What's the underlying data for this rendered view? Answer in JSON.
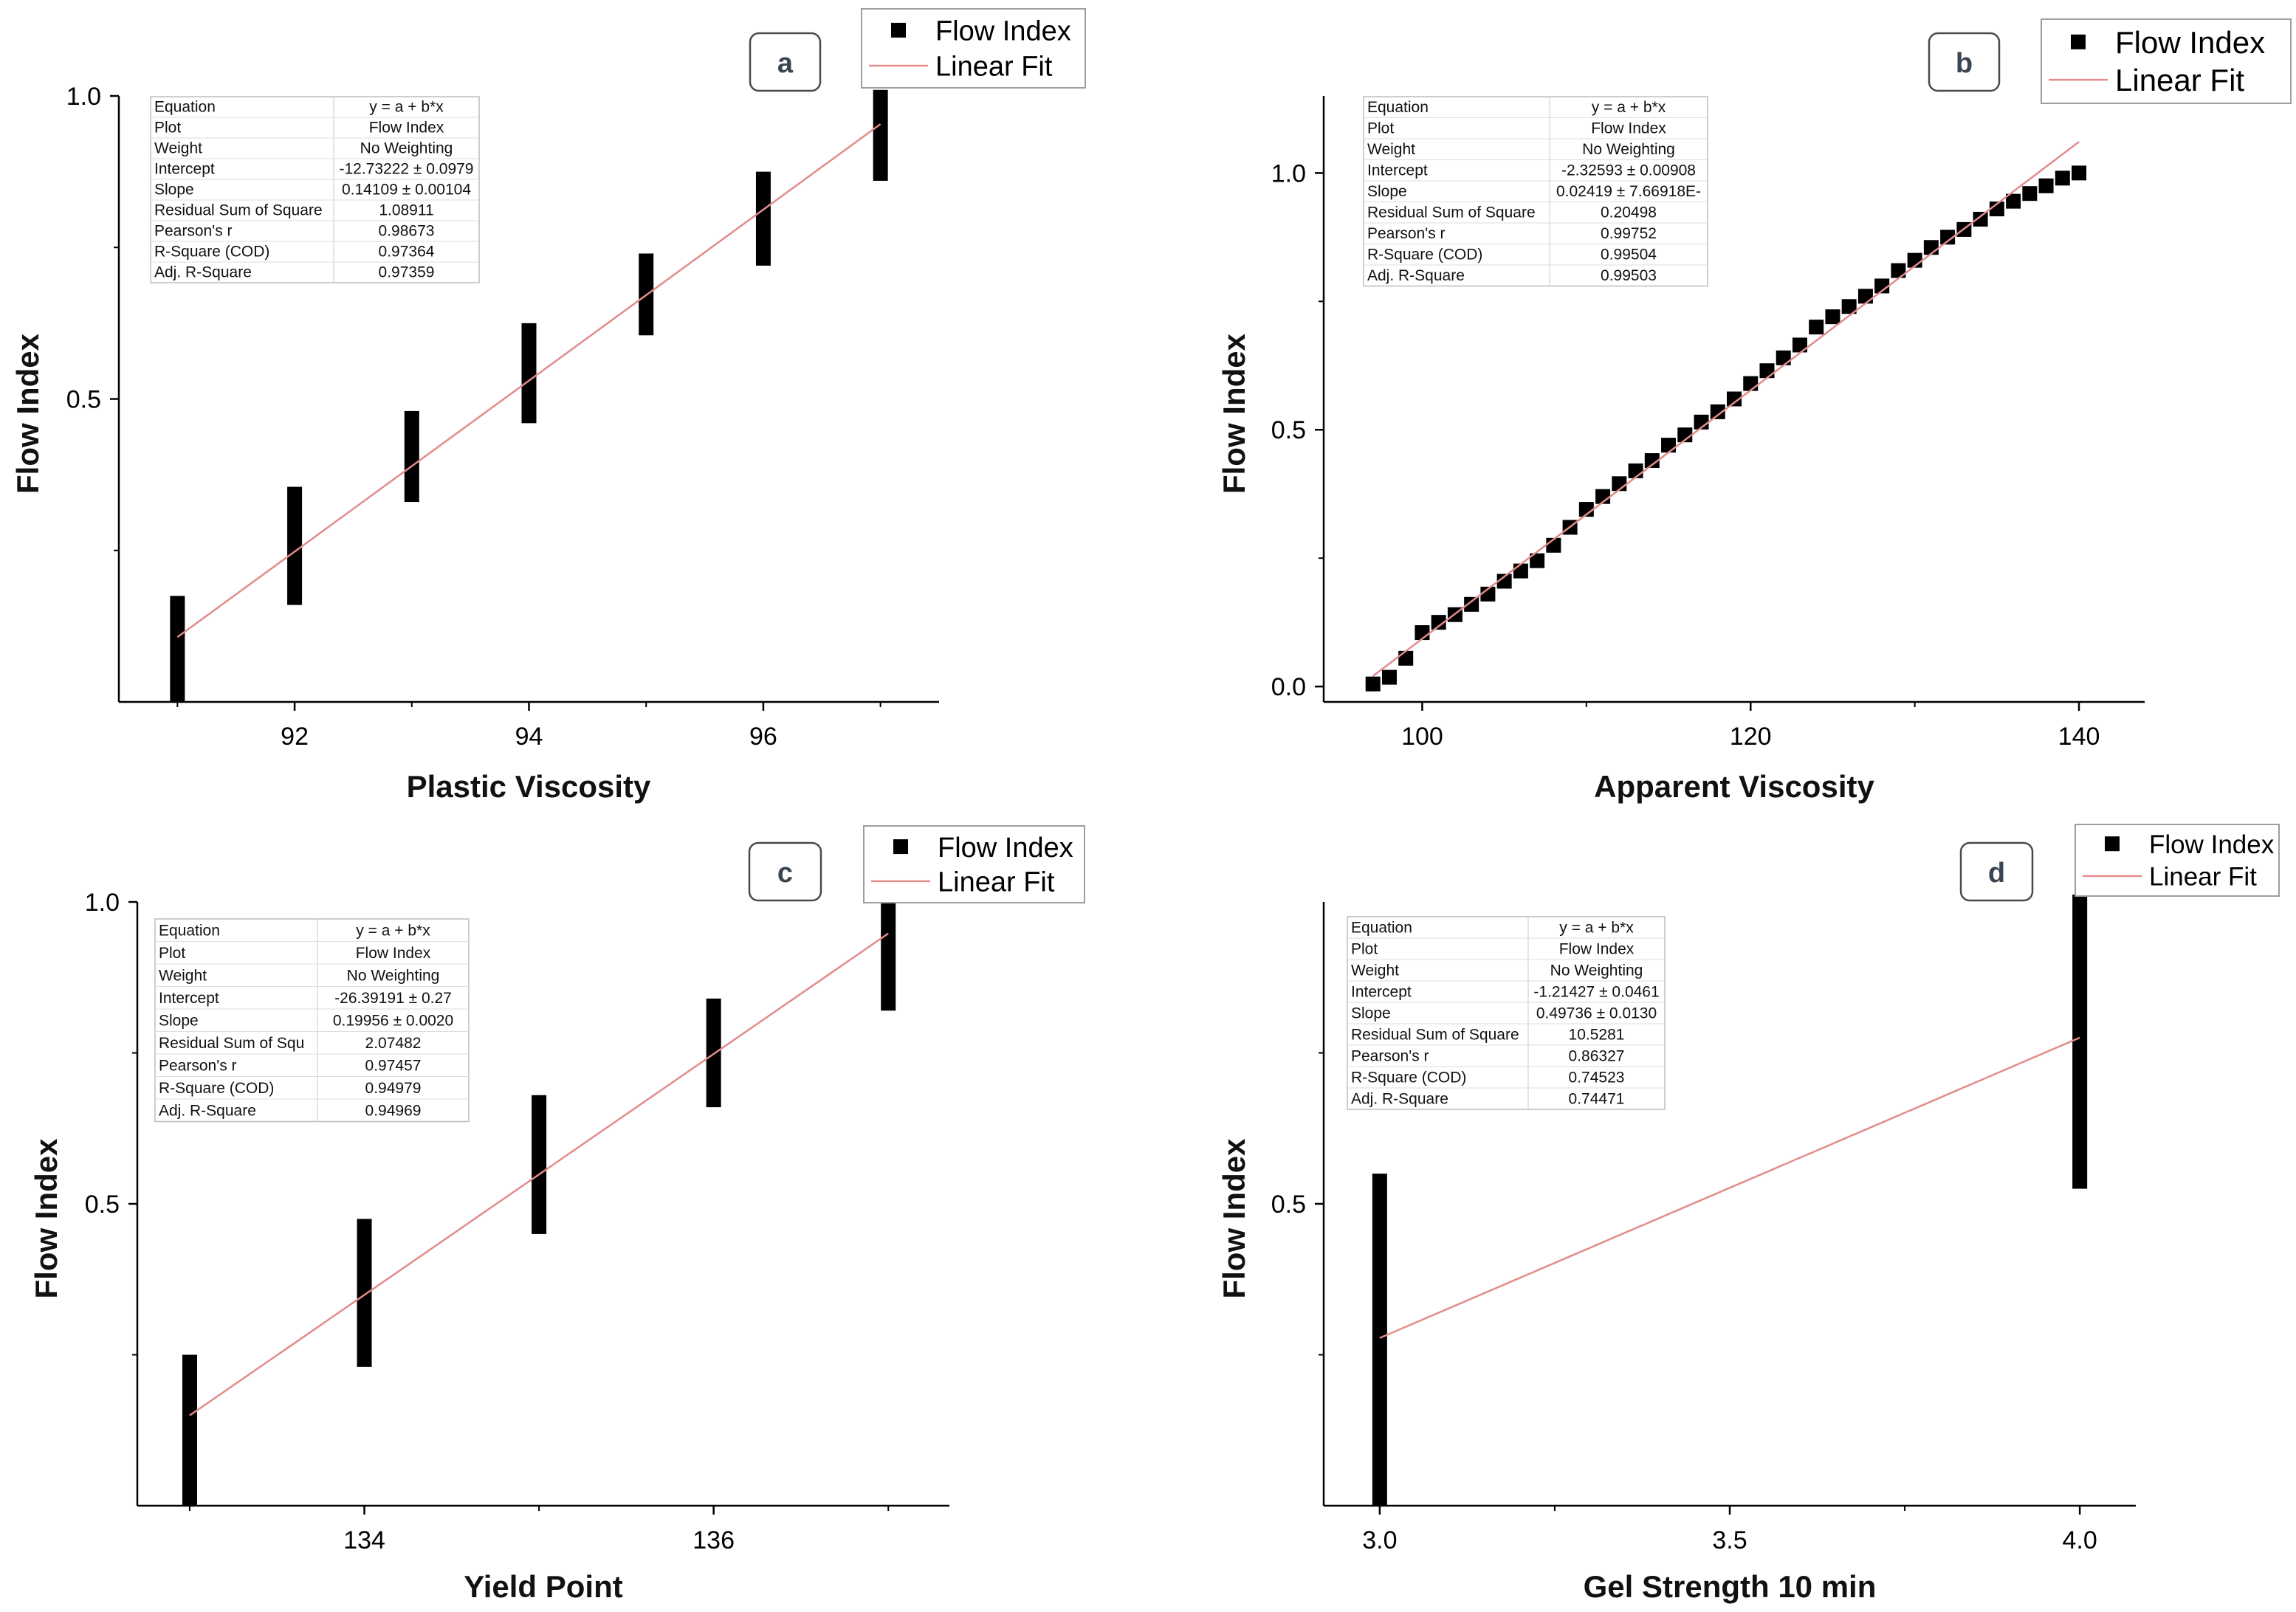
{
  "chart_data": [
    {
      "panel_label": "a",
      "type": "scatter",
      "xlabel": "Plastic Viscosity",
      "ylabel": "Flow Index",
      "xlim": [
        90.5,
        97.5
      ],
      "ylim": [
        0.0,
        1.0
      ],
      "x_ticks": [
        "92",
        "94",
        "96"
      ],
      "x_tick_values": [
        92,
        94,
        96
      ],
      "x_minor_tick_values": [
        91,
        93,
        95,
        97
      ],
      "y_ticks": [
        "0.5",
        "1.0"
      ],
      "y_tick_values": [
        0.5,
        1.0
      ],
      "y_minor_tick_values": [
        0.25,
        0.75
      ],
      "series": [
        {
          "name": "Flow Index",
          "marker": "square",
          "points": [
            {
              "x": 91,
              "y_min": 0.0,
              "y_max": 0.175
            },
            {
              "x": 92,
              "y_min": 0.16,
              "y_max": 0.355
            },
            {
              "x": 93,
              "y_min": 0.33,
              "y_max": 0.48
            },
            {
              "x": 94,
              "y_min": 0.46,
              "y_max": 0.625
            },
            {
              "x": 95,
              "y_min": 0.605,
              "y_max": 0.74
            },
            {
              "x": 96,
              "y_min": 0.72,
              "y_max": 0.875
            },
            {
              "x": 97,
              "y_min": 0.86,
              "y_max": 1.01
            }
          ]
        }
      ],
      "fit": {
        "name": "Linear Fit",
        "x_range": [
          91,
          97
        ],
        "intercept": -12.73222,
        "slope": 0.14109,
        "color": "#e38b8b"
      },
      "legend": {
        "entries": [
          "Flow Index",
          "Linear Fit"
        ],
        "position": "top-right"
      },
      "stats_table": [
        {
          "label": "Equation",
          "value": "y = a + b*x"
        },
        {
          "label": "Plot",
          "value": "Flow Index"
        },
        {
          "label": "Weight",
          "value": "No Weighting"
        },
        {
          "label": "Intercept",
          "value": "-12.73222 ± 0.0979"
        },
        {
          "label": "Slope",
          "value": "0.14109 ± 0.00104"
        },
        {
          "label": "Residual Sum of Square",
          "value": "1.08911"
        },
        {
          "label": "Pearson's r",
          "value": "0.98673"
        },
        {
          "label": "R-Square (COD)",
          "value": "0.97364"
        },
        {
          "label": "Adj. R-Square",
          "value": "0.97359"
        }
      ]
    },
    {
      "panel_label": "b",
      "type": "scatter",
      "xlabel": "Apparent Viscosity",
      "ylabel": "Flow Index",
      "xlim": [
        94,
        144
      ],
      "ylim": [
        -0.03,
        1.15
      ],
      "x_ticks": [
        "100",
        "120",
        "140"
      ],
      "x_tick_values": [
        100,
        120,
        140
      ],
      "x_minor_tick_values": [
        110,
        130
      ],
      "y_ticks": [
        "0.0",
        "0.5",
        "1.0"
      ],
      "y_tick_values": [
        0.0,
        0.5,
        1.0
      ],
      "y_minor_tick_values": [
        0.25,
        0.75
      ],
      "series": [
        {
          "name": "Flow Index",
          "marker": "square",
          "x": [
            97,
            98,
            99,
            100,
            101,
            102,
            103,
            104,
            105,
            106,
            107,
            108,
            109,
            110,
            111,
            112,
            113,
            114,
            115,
            116,
            117,
            118,
            119,
            120,
            121,
            122,
            123,
            124,
            125,
            126,
            127,
            128,
            129,
            130,
            131,
            132,
            133,
            134,
            135,
            136,
            137,
            138,
            139,
            140
          ],
          "y": [
            0.005,
            0.018,
            0.055,
            0.105,
            0.125,
            0.14,
            0.16,
            0.18,
            0.205,
            0.225,
            0.245,
            0.275,
            0.31,
            0.345,
            0.37,
            0.395,
            0.42,
            0.44,
            0.47,
            0.49,
            0.515,
            0.535,
            0.56,
            0.59,
            0.615,
            0.64,
            0.665,
            0.7,
            0.72,
            0.74,
            0.76,
            0.78,
            0.81,
            0.83,
            0.855,
            0.875,
            0.89,
            0.91,
            0.93,
            0.945,
            0.96,
            0.975,
            0.99,
            1.0
          ]
        }
      ],
      "fit": {
        "name": "Linear Fit",
        "x_range": [
          97,
          140
        ],
        "intercept": -2.32593,
        "slope": 0.02419,
        "color": "#e38b8b"
      },
      "legend": {
        "entries": [
          "Flow Index",
          "Linear Fit"
        ],
        "position": "top-right"
      },
      "stats_table": [
        {
          "label": "Equation",
          "value": "y = a + b*x"
        },
        {
          "label": "Plot",
          "value": "Flow Index"
        },
        {
          "label": "Weight",
          "value": "No Weighting"
        },
        {
          "label": "Intercept",
          "value": "-2.32593 ± 0.00908"
        },
        {
          "label": "Slope",
          "value": "0.02419 ± 7.66918E-"
        },
        {
          "label": "Residual Sum of Square",
          "value": "0.20498"
        },
        {
          "label": "Pearson's r",
          "value": "0.99752"
        },
        {
          "label": "R-Square (COD)",
          "value": "0.99504"
        },
        {
          "label": "Adj. R-Square",
          "value": "0.99503"
        }
      ]
    },
    {
      "panel_label": "c",
      "type": "scatter",
      "xlabel": "Yield Point",
      "ylabel": "Flow Index",
      "xlim": [
        132.7,
        137.35
      ],
      "ylim": [
        0.0,
        1.0
      ],
      "x_ticks": [
        "134",
        "136"
      ],
      "x_tick_values": [
        134,
        136
      ],
      "x_minor_tick_values": [
        133,
        135,
        137
      ],
      "y_ticks": [
        "0.5",
        "1.0"
      ],
      "y_tick_values": [
        0.5,
        1.0
      ],
      "y_minor_tick_values": [
        0.25,
        0.75
      ],
      "series": [
        {
          "name": "Flow Index",
          "marker": "square",
          "points": [
            {
              "x": 133,
              "y_min": 0.0,
              "y_max": 0.25
            },
            {
              "x": 134,
              "y_min": 0.23,
              "y_max": 0.475
            },
            {
              "x": 135,
              "y_min": 0.45,
              "y_max": 0.68
            },
            {
              "x": 136,
              "y_min": 0.66,
              "y_max": 0.84
            },
            {
              "x": 137,
              "y_min": 0.82,
              "y_max": 1.01
            }
          ]
        }
      ],
      "fit": {
        "name": "Linear Fit",
        "x_range": [
          133,
          137
        ],
        "intercept": -26.39191,
        "slope": 0.19956,
        "color": "#e38b8b"
      },
      "legend": {
        "entries": [
          "Flow Index",
          "Linear Fit"
        ],
        "position": "top-right"
      },
      "stats_table": [
        {
          "label": "Equation",
          "value": "y = a + b*x"
        },
        {
          "label": "Plot",
          "value": "Flow Index"
        },
        {
          "label": "Weight",
          "value": "No Weighting"
        },
        {
          "label": "Intercept",
          "value": "-26.39191 ± 0.27"
        },
        {
          "label": "Slope",
          "value": "0.19956 ± 0.0020"
        },
        {
          "label": "Residual Sum of Squ",
          "value": "2.07482"
        },
        {
          "label": "Pearson's r",
          "value": "0.97457"
        },
        {
          "label": "R-Square (COD)",
          "value": "0.94979"
        },
        {
          "label": "Adj. R-Square",
          "value": "0.94969"
        }
      ]
    },
    {
      "panel_label": "d",
      "type": "scatter",
      "xlabel": "Gel Strength 10 min",
      "ylabel": "Flow Index",
      "xlim": [
        2.92,
        4.08
      ],
      "ylim": [
        0.0,
        1.0
      ],
      "x_ticks": [
        "3.0",
        "3.5",
        "4.0"
      ],
      "x_tick_values": [
        3.0,
        3.5,
        4.0
      ],
      "x_minor_tick_values": [
        3.25,
        3.75
      ],
      "y_ticks": [
        "0.5"
      ],
      "y_tick_values": [
        0.5
      ],
      "y_minor_tick_values": [
        0.25,
        0.75
      ],
      "series": [
        {
          "name": "Flow Index",
          "marker": "square",
          "points": [
            {
              "x": 3.0,
              "y_min": 0.0,
              "y_max": 0.55
            },
            {
              "x": 4.0,
              "y_min": 0.525,
              "y_max": 1.02
            }
          ]
        }
      ],
      "fit": {
        "name": "Linear Fit",
        "x_range": [
          3.0,
          4.0
        ],
        "intercept": -1.21427,
        "slope": 0.49736,
        "color": "#e38b8b"
      },
      "legend": {
        "entries": [
          "Flow Index",
          "Linear Fit"
        ],
        "position": "top-right"
      },
      "stats_table": [
        {
          "label": "Equation",
          "value": "y = a + b*x"
        },
        {
          "label": "Plot",
          "value": "Flow Index"
        },
        {
          "label": "Weight",
          "value": "No Weighting"
        },
        {
          "label": "Intercept",
          "value": "-1.21427 ± 0.0461"
        },
        {
          "label": "Slope",
          "value": "0.49736 ± 0.0130"
        },
        {
          "label": "Residual Sum of Square",
          "value": "10.5281"
        },
        {
          "label": "Pearson's r",
          "value": "0.86327"
        },
        {
          "label": "R-Square (COD)",
          "value": "0.74523"
        },
        {
          "label": "Adj. R-Square",
          "value": "0.74471"
        }
      ]
    }
  ]
}
